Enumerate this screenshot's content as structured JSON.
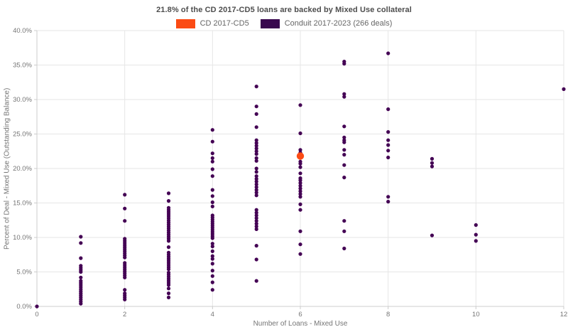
{
  "title": "21.8% of the CD 2017-CD5 loans are backed by Mixed Use collateral",
  "legend": [
    {
      "label": "CD 2017-CD5",
      "color": "#fb4b14"
    },
    {
      "label": "Conduit 2017-2023 (266 deals)",
      "color": "#38074e"
    }
  ],
  "axes": {
    "x_label": "Number of Loans - Mixed Use",
    "y_label": "Percent of Deal - Mixed Use (Outstanding Balance)"
  },
  "colors": {
    "grid": "#e6e6e6",
    "axis_line": "#cccccc",
    "tick_label": "#757575"
  },
  "chart_data": {
    "type": "scatter",
    "title": "21.8% of the CD 2017-CD5 loans are backed by Mixed Use collateral",
    "xlabel": "Number of Loans - Mixed Use",
    "ylabel": "Percent of Deal - Mixed Use (Outstanding Balance)",
    "xlim": [
      0,
      12
    ],
    "ylim": [
      0,
      40
    ],
    "x_ticks": [
      0,
      2,
      4,
      6,
      8,
      10,
      12
    ],
    "y_ticks": [
      0,
      5,
      10,
      15,
      20,
      25,
      30,
      35,
      40
    ],
    "grid": true,
    "legend_position": "top",
    "series": [
      {
        "name": "Conduit 2017-2023 (266 deals)",
        "color": "#440154",
        "marker_radius": 2.6,
        "points": [
          [
            0,
            0.0
          ],
          [
            1,
            10.1
          ],
          [
            1,
            9.2
          ],
          [
            1,
            7.0
          ],
          [
            1,
            5.9
          ],
          [
            1,
            5.6
          ],
          [
            1,
            5.3
          ],
          [
            1,
            5.0
          ],
          [
            1,
            4.2
          ],
          [
            1,
            3.7
          ],
          [
            1,
            3.4
          ],
          [
            1,
            3.1
          ],
          [
            1,
            2.8
          ],
          [
            1,
            2.5
          ],
          [
            1,
            2.2
          ],
          [
            1,
            1.9
          ],
          [
            1,
            1.6
          ],
          [
            1,
            1.3
          ],
          [
            1,
            1.0
          ],
          [
            1,
            0.7
          ],
          [
            1,
            0.4
          ],
          [
            2,
            16.2
          ],
          [
            2,
            14.2
          ],
          [
            2,
            12.4
          ],
          [
            2,
            9.8
          ],
          [
            2,
            9.5
          ],
          [
            2,
            9.2
          ],
          [
            2,
            8.9
          ],
          [
            2,
            8.6
          ],
          [
            2,
            8.3
          ],
          [
            2,
            8.0
          ],
          [
            2,
            7.7
          ],
          [
            2,
            7.4
          ],
          [
            2,
            7.1
          ],
          [
            2,
            6.3
          ],
          [
            2,
            6.0
          ],
          [
            2,
            5.7
          ],
          [
            2,
            5.4
          ],
          [
            2,
            5.1
          ],
          [
            2,
            4.8
          ],
          [
            2,
            4.5
          ],
          [
            2,
            4.2
          ],
          [
            2,
            2.4
          ],
          [
            2,
            1.9
          ],
          [
            2,
            1.6
          ],
          [
            2,
            1.3
          ],
          [
            2,
            1.0
          ],
          [
            3,
            16.4
          ],
          [
            3,
            15.3
          ],
          [
            3,
            14.3
          ],
          [
            3,
            14.0
          ],
          [
            3,
            13.7
          ],
          [
            3,
            13.4
          ],
          [
            3,
            13.1
          ],
          [
            3,
            12.8
          ],
          [
            3,
            12.5
          ],
          [
            3,
            12.2
          ],
          [
            3,
            11.9
          ],
          [
            3,
            11.6
          ],
          [
            3,
            11.3
          ],
          [
            3,
            11.0
          ],
          [
            3,
            10.7
          ],
          [
            3,
            10.4
          ],
          [
            3,
            10.1
          ],
          [
            3,
            9.8
          ],
          [
            3,
            9.5
          ],
          [
            3,
            8.6
          ],
          [
            3,
            7.8
          ],
          [
            3,
            7.5
          ],
          [
            3,
            7.2
          ],
          [
            3,
            6.9
          ],
          [
            3,
            6.6
          ],
          [
            3,
            6.3
          ],
          [
            3,
            6.0
          ],
          [
            3,
            5.7
          ],
          [
            3,
            5.4
          ],
          [
            3,
            4.9
          ],
          [
            3,
            4.6
          ],
          [
            3,
            4.3
          ],
          [
            3,
            4.0
          ],
          [
            3,
            3.7
          ],
          [
            3,
            3.4
          ],
          [
            3,
            3.1
          ],
          [
            3,
            2.6
          ],
          [
            3,
            1.9
          ],
          [
            3,
            1.3
          ],
          [
            4,
            25.6
          ],
          [
            4,
            23.9
          ],
          [
            4,
            22.2
          ],
          [
            4,
            21.5
          ],
          [
            4,
            21.0
          ],
          [
            4,
            19.9
          ],
          [
            4,
            18.9
          ],
          [
            4,
            16.9
          ],
          [
            4,
            16.0
          ],
          [
            4,
            15.1
          ],
          [
            4,
            14.5
          ],
          [
            4,
            13.2
          ],
          [
            4,
            12.9
          ],
          [
            4,
            12.6
          ],
          [
            4,
            12.3
          ],
          [
            4,
            12.0
          ],
          [
            4,
            11.7
          ],
          [
            4,
            11.4
          ],
          [
            4,
            11.1
          ],
          [
            4,
            10.8
          ],
          [
            4,
            10.5
          ],
          [
            4,
            10.2
          ],
          [
            4,
            9.9
          ],
          [
            4,
            9.1
          ],
          [
            4,
            8.7
          ],
          [
            4,
            8.0
          ],
          [
            4,
            7.3
          ],
          [
            4,
            6.9
          ],
          [
            4,
            6.2
          ],
          [
            4,
            5.2
          ],
          [
            4,
            4.4
          ],
          [
            4,
            3.5
          ],
          [
            4,
            2.4
          ],
          [
            5,
            31.9
          ],
          [
            5,
            29.0
          ],
          [
            5,
            27.9
          ],
          [
            5,
            26.0
          ],
          [
            5,
            24.1
          ],
          [
            5,
            23.7
          ],
          [
            5,
            23.3
          ],
          [
            5,
            22.9
          ],
          [
            5,
            22.5
          ],
          [
            5,
            22.1
          ],
          [
            5,
            21.5
          ],
          [
            5,
            21.1
          ],
          [
            5,
            20.0
          ],
          [
            5,
            19.5
          ],
          [
            5,
            18.9
          ],
          [
            5,
            18.5
          ],
          [
            5,
            18.1
          ],
          [
            5,
            17.7
          ],
          [
            5,
            17.3
          ],
          [
            5,
            16.9
          ],
          [
            5,
            16.5
          ],
          [
            5,
            16.1
          ],
          [
            5,
            14.0
          ],
          [
            5,
            13.6
          ],
          [
            5,
            13.2
          ],
          [
            5,
            12.8
          ],
          [
            5,
            12.4
          ],
          [
            5,
            12.0
          ],
          [
            5,
            11.6
          ],
          [
            5,
            11.2
          ],
          [
            5,
            8.8
          ],
          [
            5,
            6.8
          ],
          [
            5,
            3.7
          ],
          [
            6,
            29.2
          ],
          [
            6,
            25.1
          ],
          [
            6,
            22.7
          ],
          [
            6,
            22.3
          ],
          [
            6,
            21.9
          ],
          [
            6,
            21.0
          ],
          [
            6,
            20.7
          ],
          [
            6,
            20.2
          ],
          [
            6,
            19.3
          ],
          [
            6,
            18.6
          ],
          [
            6,
            18.3
          ],
          [
            6,
            17.9
          ],
          [
            6,
            17.5
          ],
          [
            6,
            17.1
          ],
          [
            6,
            16.7
          ],
          [
            6,
            16.3
          ],
          [
            6,
            15.9
          ],
          [
            6,
            14.8
          ],
          [
            6,
            14.0
          ],
          [
            6,
            10.9
          ],
          [
            6,
            9.0
          ],
          [
            6,
            7.6
          ],
          [
            7,
            35.5
          ],
          [
            7,
            35.2
          ],
          [
            7,
            30.8
          ],
          [
            7,
            30.4
          ],
          [
            7,
            26.1
          ],
          [
            7,
            24.5
          ],
          [
            7,
            24.1
          ],
          [
            7,
            23.8
          ],
          [
            7,
            22.7
          ],
          [
            7,
            22.0
          ],
          [
            7,
            20.5
          ],
          [
            7,
            18.7
          ],
          [
            7,
            12.4
          ],
          [
            7,
            10.9
          ],
          [
            7,
            8.4
          ],
          [
            8,
            36.7
          ],
          [
            8,
            28.6
          ],
          [
            8,
            25.3
          ],
          [
            8,
            24.1
          ],
          [
            8,
            23.4
          ],
          [
            8,
            22.6
          ],
          [
            8,
            21.6
          ],
          [
            8,
            15.9
          ],
          [
            8,
            15.2
          ],
          [
            9,
            21.4
          ],
          [
            9,
            20.8
          ],
          [
            9,
            20.3
          ],
          [
            9,
            10.3
          ],
          [
            10,
            11.8
          ],
          [
            10,
            10.4
          ],
          [
            10,
            9.5
          ],
          [
            12,
            31.5
          ]
        ]
      },
      {
        "name": "CD 2017-CD5",
        "color": "#fb4b14",
        "marker_radius": 5.2,
        "points": [
          [
            6,
            21.8
          ]
        ]
      }
    ]
  }
}
